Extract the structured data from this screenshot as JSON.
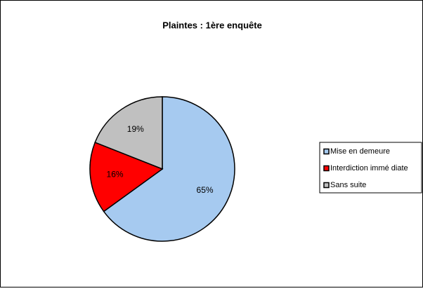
{
  "chart_data": {
    "type": "pie",
    "title": "Plaintes : 1ère enquête",
    "categories": [
      "Mise en demeure",
      "Interdiction immé diate",
      "Sans suite"
    ],
    "values": [
      65,
      16,
      19
    ],
    "value_labels": [
      "65%",
      "16%",
      "19%"
    ],
    "colors": [
      "#a6caf0",
      "#ff0000",
      "#c0c0c0"
    ],
    "legend": "right"
  }
}
